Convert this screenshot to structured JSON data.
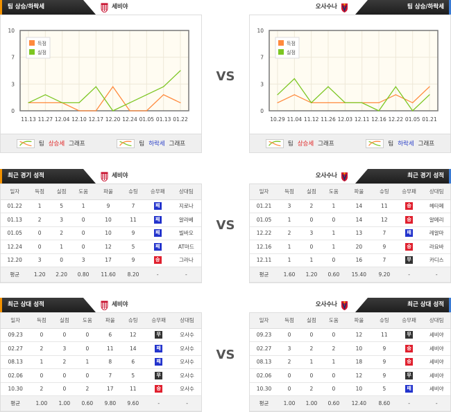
{
  "vs_label": "VS",
  "colors": {
    "goals": "#ff8a3d",
    "conceded": "#7dc623",
    "win": "#e0202e",
    "loss": "#2233cc",
    "draw": "#333333",
    "accent_left": "#f39200",
    "accent_right": "#3a7bd5"
  },
  "home": {
    "name": "세비야",
    "logo": "sevilla-crest"
  },
  "away": {
    "name": "오사수나",
    "logo": "osasuna-crest"
  },
  "trend": {
    "title": "팀 상승/하락세",
    "legend": {
      "goals": "득점",
      "conceded": "실점"
    },
    "footer": {
      "team": "팀",
      "up": "상승세",
      "down": "하락세",
      "graph": "그래프"
    },
    "home_chart": {
      "type": "line",
      "x": [
        "11.13",
        "11.27",
        "12.04",
        "12.10",
        "12.17",
        "12.20",
        "12.24",
        "01.05",
        "01.13",
        "01.22"
      ],
      "yticks": [
        "10",
        "7",
        "3",
        "0"
      ],
      "ylim": [
        0,
        10
      ],
      "series": [
        {
          "name": "득점",
          "values": [
            1,
            1,
            1,
            0,
            0,
            3,
            0,
            0,
            2,
            1
          ]
        },
        {
          "name": "실점",
          "values": [
            1,
            2,
            1,
            1,
            3,
            0,
            1,
            2,
            3,
            5
          ]
        }
      ]
    },
    "away_chart": {
      "type": "line",
      "x": [
        "10.29",
        "11.04",
        "11.12",
        "11.26",
        "12.03",
        "12.11",
        "12.16",
        "12.22",
        "01.05",
        "01.21"
      ],
      "yticks": [
        "10",
        "7",
        "3",
        "0"
      ],
      "ylim": [
        0,
        10
      ],
      "series": [
        {
          "name": "득점",
          "values": [
            1,
            2,
            1,
            1,
            1,
            1,
            1,
            2,
            1,
            3
          ]
        },
        {
          "name": "실점",
          "values": [
            2,
            4,
            1,
            3,
            1,
            1,
            0,
            3,
            0,
            2
          ]
        }
      ]
    }
  },
  "columns": [
    "일자",
    "득점",
    "실점",
    "도움",
    "파울",
    "슈팅",
    "승무패",
    "상대팀"
  ],
  "recent": {
    "title": "최근 경기 성적",
    "home": {
      "rows": [
        [
          "01.22",
          "1",
          "5",
          "1",
          "9",
          "7",
          "패",
          "지로나"
        ],
        [
          "01.13",
          "2",
          "3",
          "0",
          "10",
          "11",
          "패",
          "알라베"
        ],
        [
          "01.05",
          "0",
          "2",
          "0",
          "10",
          "9",
          "패",
          "빌바오"
        ],
        [
          "12.24",
          "0",
          "1",
          "0",
          "12",
          "5",
          "패",
          "AT마드"
        ],
        [
          "12.20",
          "3",
          "0",
          "3",
          "17",
          "9",
          "승",
          "그라나"
        ]
      ],
      "avg": [
        "평균",
        "1.20",
        "2.20",
        "0.80",
        "11.60",
        "8.20",
        "-",
        "-"
      ]
    },
    "away": {
      "rows": [
        [
          "01.21",
          "3",
          "2",
          "1",
          "14",
          "11",
          "승",
          "헤타페"
        ],
        [
          "01.05",
          "1",
          "0",
          "0",
          "14",
          "12",
          "승",
          "알메리"
        ],
        [
          "12.22",
          "2",
          "3",
          "1",
          "13",
          "7",
          "패",
          "레알마"
        ],
        [
          "12.16",
          "1",
          "0",
          "1",
          "20",
          "9",
          "승",
          "라요바"
        ],
        [
          "12.11",
          "1",
          "1",
          "0",
          "16",
          "7",
          "무",
          "카디스"
        ]
      ],
      "avg": [
        "평균",
        "1.60",
        "1.20",
        "0.60",
        "15.40",
        "9.20",
        "-",
        "-"
      ]
    }
  },
  "h2h": {
    "title": "최근 상대 성적",
    "home": {
      "rows": [
        [
          "09.23",
          "0",
          "0",
          "0",
          "6",
          "12",
          "무",
          "오사수"
        ],
        [
          "02.27",
          "2",
          "3",
          "0",
          "11",
          "14",
          "패",
          "오사수"
        ],
        [
          "08.13",
          "1",
          "2",
          "1",
          "8",
          "6",
          "패",
          "오사수"
        ],
        [
          "02.06",
          "0",
          "0",
          "0",
          "7",
          "5",
          "무",
          "오사수"
        ],
        [
          "10.30",
          "2",
          "0",
          "2",
          "17",
          "11",
          "승",
          "오사수"
        ]
      ],
      "avg": [
        "평균",
        "1.00",
        "1.00",
        "0.60",
        "9.80",
        "9.60",
        "-",
        "-"
      ]
    },
    "away": {
      "rows": [
        [
          "09.23",
          "0",
          "0",
          "0",
          "12",
          "11",
          "무",
          "세비야"
        ],
        [
          "02.27",
          "3",
          "2",
          "2",
          "10",
          "9",
          "승",
          "세비야"
        ],
        [
          "08.13",
          "2",
          "1",
          "1",
          "18",
          "9",
          "승",
          "세비야"
        ],
        [
          "02.06",
          "0",
          "0",
          "0",
          "12",
          "9",
          "무",
          "세비야"
        ],
        [
          "10.30",
          "0",
          "2",
          "0",
          "10",
          "5",
          "패",
          "세비야"
        ]
      ],
      "avg": [
        "평균",
        "1.00",
        "1.00",
        "0.60",
        "12.40",
        "8.60",
        "-",
        "-"
      ]
    }
  }
}
